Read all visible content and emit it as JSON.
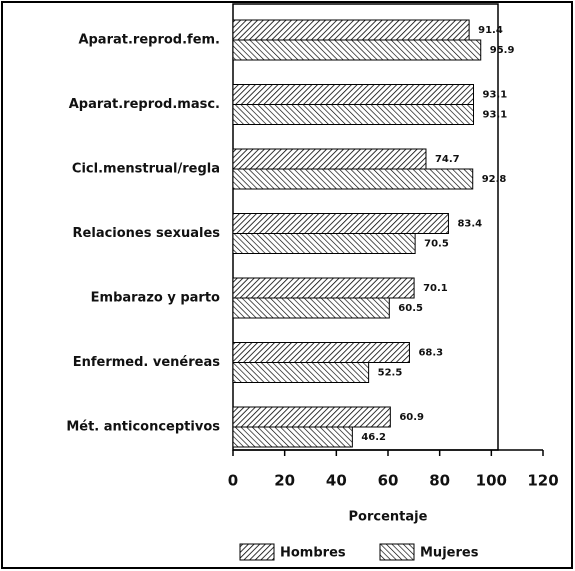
{
  "chart_data": {
    "type": "bar",
    "orientation": "horizontal",
    "categories": [
      "Aparat.reprod.fem.",
      "Aparat.reprod.masc.",
      "Cicl.menstrual/regla",
      "Relaciones sexuales",
      "Embarazo y parto",
      "Enfermed. venéreas",
      "Mét. anticonceptivos"
    ],
    "series": [
      {
        "name": "Hombres",
        "color": "#000000",
        "values": [
          91.4,
          93.1,
          74.7,
          83.4,
          70.1,
          68.3,
          60.9
        ]
      },
      {
        "name": "Mujeres",
        "color": "#000000",
        "values": [
          95.9,
          93.1,
          92.8,
          70.5,
          60.5,
          52.5,
          46.2
        ]
      }
    ],
    "xlabel": "Porcentaje",
    "xlim": [
      0,
      120
    ],
    "xticks": [
      0,
      20,
      40,
      60,
      80,
      100,
      120
    ],
    "legend": "bottom"
  }
}
